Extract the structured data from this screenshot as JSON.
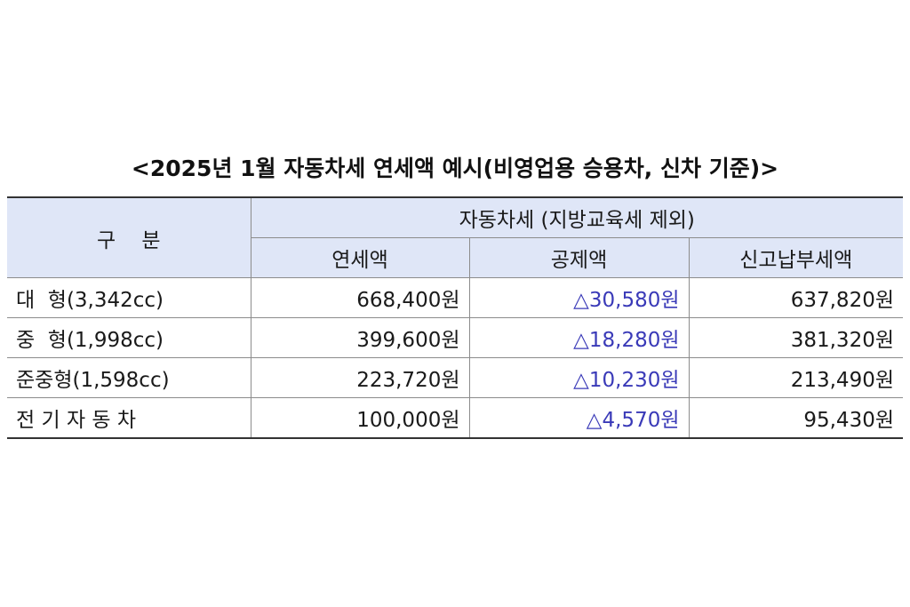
{
  "title": "<2025년 1월 자동차세 연세액 예시(비영업용 승용차, 신차 기준)>",
  "table": {
    "category_header": "구    분",
    "group_header": "자동차세 (지방교육세 제외)",
    "columns": [
      "연세액",
      "공제액",
      "신고납부세액"
    ],
    "rows": [
      {
        "category": "대  형(3,342cc)",
        "annual": "668,400원",
        "deduction": "△30,580원",
        "payable": "637,820원"
      },
      {
        "category": "중  형(1,998cc)",
        "annual": "399,600원",
        "deduction": "△18,280원",
        "payable": "381,320원"
      },
      {
        "category": "준중형(1,598cc)",
        "annual": "223,720원",
        "deduction": "△10,230원",
        "payable": "213,490원"
      },
      {
        "category": "전 기 자 동 차",
        "annual": "100,000원",
        "deduction": "△4,570원",
        "payable": "95,430원"
      }
    ]
  },
  "colors": {
    "header_bg": "#dfe6f7",
    "deduction_text": "#3a3ab8"
  }
}
